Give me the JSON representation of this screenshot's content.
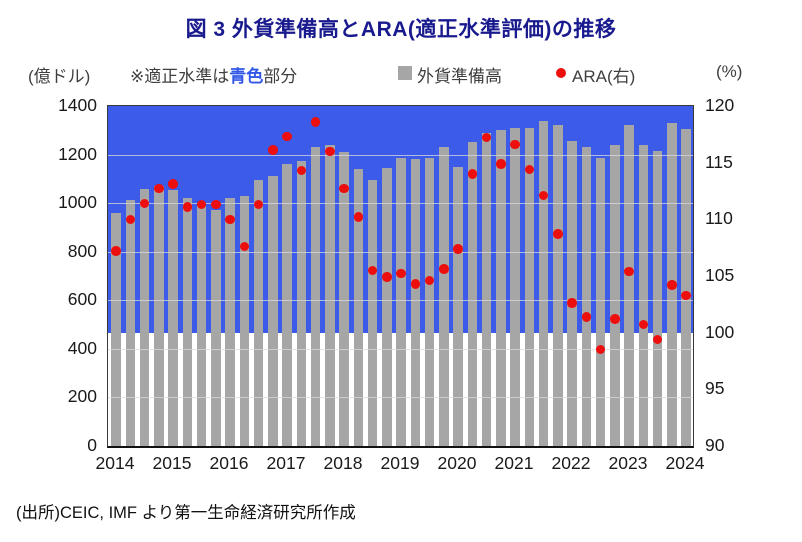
{
  "title": "図 3  外貨準備高とARA(適正水準評価)の推移",
  "legend": {
    "left_axis_unit": "(億ドル)",
    "note_prefix": "※適正水準は",
    "note_highlight": "青色",
    "note_suffix": "部分",
    "bar_series_label": "外貨準備高",
    "dot_series_label": "ARA(右)",
    "right_axis_unit": "(%)"
  },
  "footer": "(出所)CEIC, IMF より第一生命経済研究所作成",
  "colors": {
    "title": "#1a1a8f",
    "adequate_zone_blue": "#3b5be8",
    "bar_gray": "#a6a6a6",
    "dot_red": "#ed0e0e",
    "note_highlight_blue": "#3358e8"
  },
  "chart_data": {
    "type": "combo",
    "frequency": "quarterly",
    "x": [
      "2014Q1",
      "2014Q2",
      "2014Q3",
      "2014Q4",
      "2015Q1",
      "2015Q2",
      "2015Q3",
      "2015Q4",
      "2016Q1",
      "2016Q2",
      "2016Q3",
      "2016Q4",
      "2017Q1",
      "2017Q2",
      "2017Q3",
      "2017Q4",
      "2018Q1",
      "2018Q2",
      "2018Q3",
      "2018Q4",
      "2019Q1",
      "2019Q2",
      "2019Q3",
      "2019Q4",
      "2020Q1",
      "2020Q2",
      "2020Q3",
      "2020Q4",
      "2021Q1",
      "2021Q2",
      "2021Q3",
      "2021Q4",
      "2022Q1",
      "2022Q2",
      "2022Q3",
      "2022Q4",
      "2023Q1",
      "2023Q2",
      "2023Q3",
      "2023Q4",
      "2024Q1"
    ],
    "x_tick_labels": [
      "2014",
      "2015",
      "2016",
      "2017",
      "2018",
      "2019",
      "2020",
      "2021",
      "2022",
      "2023",
      "2024"
    ],
    "series": [
      {
        "name": "外貨準備高",
        "type": "bar",
        "axis": "left",
        "unit": "億ドル",
        "values": [
          960,
          1015,
          1060,
          1070,
          1055,
          1020,
          990,
          970,
          1020,
          1030,
          1095,
          1110,
          1160,
          1175,
          1230,
          1240,
          1210,
          1140,
          1095,
          1145,
          1185,
          1180,
          1185,
          1230,
          1150,
          1250,
          1290,
          1300,
          1310,
          1310,
          1340,
          1320,
          1255,
          1230,
          1185,
          1240,
          1320,
          1240,
          1215,
          1330,
          1305
        ]
      },
      {
        "name": "ARA(右)",
        "type": "scatter",
        "axis": "right",
        "unit": "%",
        "values": [
          107.2,
          110.0,
          111.4,
          112.7,
          113.1,
          111.1,
          111.3,
          111.3,
          110.0,
          107.6,
          111.3,
          116.1,
          117.3,
          114.3,
          118.6,
          116.0,
          112.7,
          110.2,
          105.5,
          104.9,
          105.2,
          104.3,
          104.6,
          105.6,
          107.4,
          114.0,
          117.2,
          114.9,
          116.6,
          114.4,
          112.1,
          108.7,
          102.6,
          101.4,
          98.5,
          101.2,
          105.4,
          100.7,
          99.4,
          104.2,
          103.3
        ]
      }
    ],
    "left_axis": {
      "min": 0,
      "max": 1400,
      "step": 200,
      "unit": "億ドル"
    },
    "right_axis": {
      "min": 90,
      "max": 120,
      "step": 5,
      "unit": "%"
    },
    "adequate_zone": {
      "axis": "right",
      "from": 100,
      "to": 120,
      "note": "適正水準は青色部分"
    },
    "grid": true,
    "legend_position": "top"
  }
}
